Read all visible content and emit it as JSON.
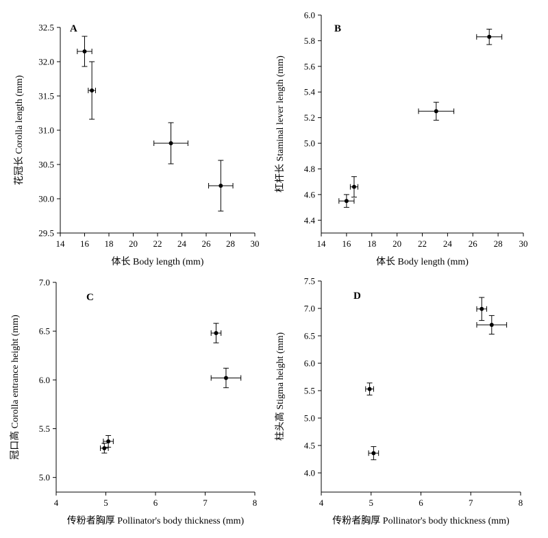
{
  "chart_data": [
    {
      "type": "scatter",
      "panel_label": "A",
      "xlabel": "体长 Body length (mm)",
      "ylabel": "花冠长 Corolla length (mm)",
      "xlim": [
        14,
        30
      ],
      "ylim": [
        29.5,
        32.5
      ],
      "xticks": [
        "14",
        "16",
        "18",
        "20",
        "22",
        "24",
        "26",
        "28",
        "30"
      ],
      "yticks": [
        "29.5",
        "30.0",
        "30.5",
        "31.0",
        "31.5",
        "32.0",
        "32.5"
      ],
      "points": [
        {
          "x": 16.0,
          "y": 32.15,
          "xerr": 0.6,
          "yerr": 0.22
        },
        {
          "x": 16.6,
          "y": 31.58,
          "xerr": 0.3,
          "yerr": 0.42
        },
        {
          "x": 23.1,
          "y": 30.81,
          "xerr": 1.4,
          "yerr": 0.3
        },
        {
          "x": 27.2,
          "y": 30.19,
          "xerr": 1.0,
          "yerr": 0.37
        }
      ]
    },
    {
      "type": "scatter",
      "panel_label": "B",
      "xlabel": "体长 Body length (mm)",
      "ylabel": "杠杆长 Staminal lever length (mm)",
      "xlim": [
        14,
        30
      ],
      "ylim": [
        4.3,
        6.0
      ],
      "xticks": [
        "14",
        "16",
        "18",
        "20",
        "22",
        "24",
        "26",
        "28",
        "30"
      ],
      "yticks": [
        "4.4",
        "4.6",
        "4.8",
        "5.0",
        "5.2",
        "5.4",
        "5.6",
        "5.8",
        "6.0"
      ],
      "points": [
        {
          "x": 16.0,
          "y": 4.55,
          "xerr": 0.6,
          "yerr": 0.05
        },
        {
          "x": 16.6,
          "y": 4.66,
          "xerr": 0.3,
          "yerr": 0.08
        },
        {
          "x": 23.1,
          "y": 5.25,
          "xerr": 1.4,
          "yerr": 0.07
        },
        {
          "x": 27.3,
          "y": 5.83,
          "xerr": 1.0,
          "yerr": 0.06
        }
      ]
    },
    {
      "type": "scatter",
      "panel_label": "C",
      "xlabel": "传粉者胸厚 Pollinator's body thickness (mm)",
      "ylabel": "冠口高 Corolla entrance height (mm)",
      "xlim": [
        4,
        8
      ],
      "ylim": [
        4.85,
        7.0
      ],
      "xticks": [
        "4",
        "5",
        "6",
        "7",
        "8"
      ],
      "yticks": [
        "5.0",
        "5.5",
        "6.0",
        "6.5",
        "7.0"
      ],
      "points": [
        {
          "x": 4.97,
          "y": 5.3,
          "xerr": 0.08,
          "yerr": 0.05
        },
        {
          "x": 5.05,
          "y": 5.37,
          "xerr": 0.1,
          "yerr": 0.06
        },
        {
          "x": 7.22,
          "y": 6.48,
          "xerr": 0.1,
          "yerr": 0.1
        },
        {
          "x": 7.42,
          "y": 6.02,
          "xerr": 0.3,
          "yerr": 0.1
        }
      ]
    },
    {
      "type": "scatter",
      "panel_label": "D",
      "xlabel": "传粉者胸厚 Pollinator's body thickness (mm)",
      "ylabel": "柱头高 Stigma height (mm)",
      "xlim": [
        4,
        8
      ],
      "ylim": [
        3.65,
        7.5
      ],
      "xticks": [
        "4",
        "5",
        "6",
        "7",
        "8"
      ],
      "yticks": [
        "4.0",
        "4.5",
        "5.0",
        "5.5",
        "6.0",
        "6.5",
        "7.0",
        "7.5"
      ],
      "points": [
        {
          "x": 4.97,
          "y": 5.53,
          "xerr": 0.08,
          "yerr": 0.11
        },
        {
          "x": 5.05,
          "y": 4.36,
          "xerr": 0.1,
          "yerr": 0.12
        },
        {
          "x": 7.22,
          "y": 6.99,
          "xerr": 0.1,
          "yerr": 0.21
        },
        {
          "x": 7.42,
          "y": 6.7,
          "xerr": 0.3,
          "yerr": 0.17
        }
      ]
    }
  ]
}
